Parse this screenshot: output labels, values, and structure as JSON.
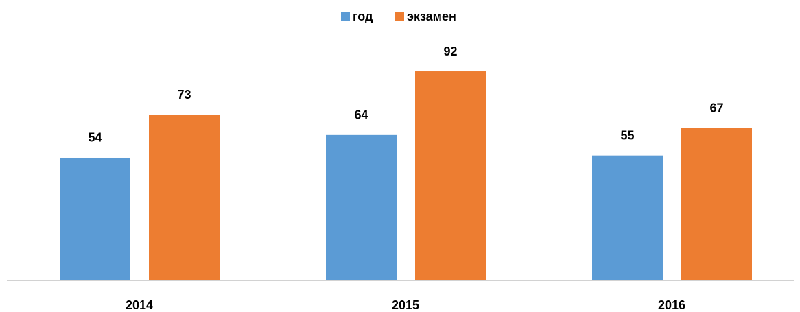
{
  "chart_data": {
    "type": "bar",
    "categories": [
      "2014",
      "2015",
      "2016"
    ],
    "series": [
      {
        "name": "год",
        "color": "#5b9bd5",
        "values": [
          54,
          64,
          55
        ]
      },
      {
        "name": "экзамен",
        "color": "#ed7d31",
        "values": [
          73,
          92,
          67
        ]
      }
    ],
    "legend": "top"
  }
}
